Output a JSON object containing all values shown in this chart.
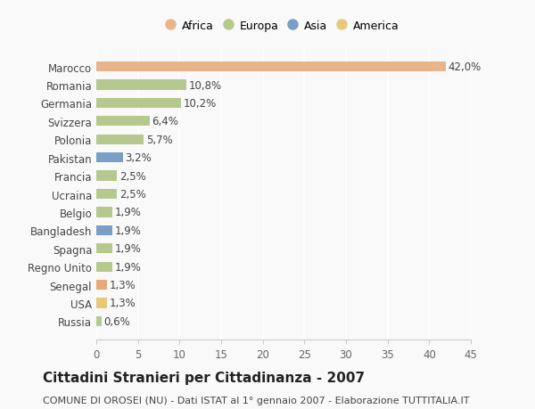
{
  "categories": [
    "Russia",
    "USA",
    "Senegal",
    "Regno Unito",
    "Spagna",
    "Bangladesh",
    "Belgio",
    "Ucraina",
    "Francia",
    "Pakistan",
    "Polonia",
    "Svizzera",
    "Germania",
    "Romania",
    "Marocco"
  ],
  "values": [
    0.6,
    1.3,
    1.3,
    1.9,
    1.9,
    1.9,
    1.9,
    2.5,
    2.5,
    3.2,
    5.7,
    6.4,
    10.2,
    10.8,
    42.0
  ],
  "labels": [
    "0,6%",
    "1,3%",
    "1,3%",
    "1,9%",
    "1,9%",
    "1,9%",
    "1,9%",
    "2,5%",
    "2,5%",
    "3,2%",
    "5,7%",
    "6,4%",
    "10,2%",
    "10,8%",
    "42,0%"
  ],
  "colors": [
    "#b5c98e",
    "#e8c97a",
    "#e8a87a",
    "#b5c98e",
    "#b5c98e",
    "#7a9fc4",
    "#b5c98e",
    "#b5c98e",
    "#b5c98e",
    "#7a9fc4",
    "#b5c98e",
    "#b5c98e",
    "#b5c98e",
    "#b5c98e",
    "#e8b48a"
  ],
  "legend": [
    {
      "label": "Africa",
      "color": "#e8b48a"
    },
    {
      "label": "Europa",
      "color": "#b5c98e"
    },
    {
      "label": "Asia",
      "color": "#7a9fc4"
    },
    {
      "label": "America",
      "color": "#e8c97a"
    }
  ],
  "title": "Cittadini Stranieri per Cittadinanza - 2007",
  "subtitle": "COMUNE DI OROSEI (NU) - Dati ISTAT al 1° gennaio 2007 - Elaborazione TUTTITALIA.IT",
  "xlim": [
    0,
    45
  ],
  "xticks": [
    0,
    5,
    10,
    15,
    20,
    25,
    30,
    35,
    40,
    45
  ],
  "background_color": "#f9f9f9",
  "bar_height": 0.55,
  "label_fontsize": 8.5,
  "tick_fontsize": 8.5,
  "title_fontsize": 11,
  "subtitle_fontsize": 8
}
